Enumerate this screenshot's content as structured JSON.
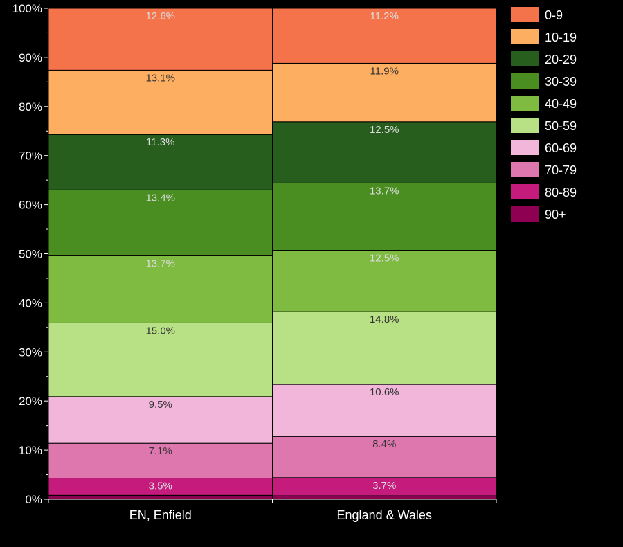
{
  "chart_data": {
    "type": "bar",
    "stacked": true,
    "orientation": "vertical",
    "categories": [
      "EN, Enfield",
      "England & Wales"
    ],
    "ylim": [
      0,
      100
    ],
    "yticks": [
      "0%",
      "10%",
      "20%",
      "30%",
      "40%",
      "50%",
      "60%",
      "70%",
      "80%",
      "90%",
      "100%"
    ],
    "legend_position": "right",
    "grid": false,
    "series": [
      {
        "name": "0-9",
        "color": "#f4734a",
        "values": [
          12.6,
          11.2
        ],
        "labels": [
          "12.6%",
          "11.2%"
        ]
      },
      {
        "name": "10-19",
        "color": "#fdae61",
        "values": [
          13.1,
          11.9
        ],
        "labels": [
          "13.1%",
          "11.9%"
        ]
      },
      {
        "name": "20-29",
        "color": "#275e1d",
        "values": [
          11.3,
          12.5
        ],
        "labels": [
          "11.3%",
          "12.5%"
        ]
      },
      {
        "name": "30-39",
        "color": "#4a8e22",
        "values": [
          13.4,
          13.7
        ],
        "labels": [
          "13.4%",
          "13.7%"
        ]
      },
      {
        "name": "40-49",
        "color": "#7fba41",
        "values": [
          13.7,
          12.5
        ],
        "labels": [
          "13.7%",
          "12.5%"
        ]
      },
      {
        "name": "50-59",
        "color": "#b8e186",
        "values": [
          15.0,
          14.8
        ],
        "labels": [
          "15.0%",
          "14.8%"
        ]
      },
      {
        "name": "60-69",
        "color": "#f1b6da",
        "values": [
          9.5,
          10.6
        ],
        "labels": [
          "9.5%",
          "10.6%"
        ]
      },
      {
        "name": "70-79",
        "color": "#de77ae",
        "values": [
          7.1,
          8.4
        ],
        "labels": [
          "7.1%",
          "8.4%"
        ]
      },
      {
        "name": "80-89",
        "color": "#c51b7d",
        "values": [
          3.5,
          3.7
        ],
        "labels": [
          "3.5%",
          "3.7%"
        ]
      },
      {
        "name": "90+",
        "color": "#8e0152",
        "values": [
          0.8,
          0.7
        ],
        "labels": [
          "",
          ""
        ]
      }
    ]
  }
}
